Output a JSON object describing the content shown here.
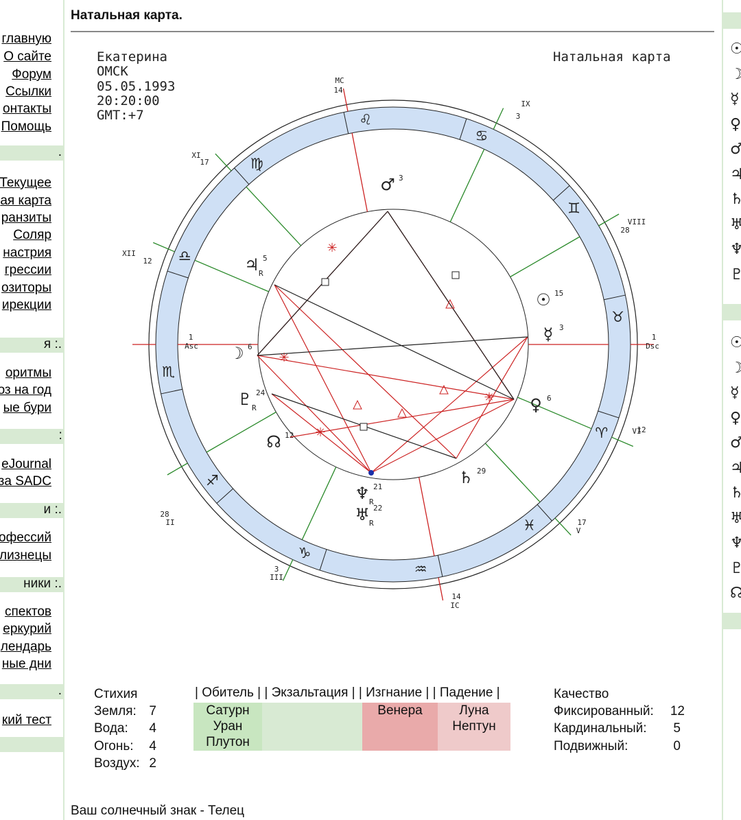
{
  "page_title": "Натальная карта.",
  "left_nav": {
    "items_top": [
      "главную",
      "О сайте",
      "Форум",
      "Ссылки",
      "онтакты",
      "Помощь"
    ],
    "band1": ".",
    "items_2": [
      "Текущее",
      "ая карта",
      "ранзиты",
      "Соляр",
      "настрия",
      "грессии",
      "озиторы",
      "ирекции"
    ],
    "band2": "я :.",
    "items_3": [
      "оритмы",
      "оз на год",
      "ые бури"
    ],
    "band3": ":.",
    "items_4": [
      "eJournal",
      "за SADC"
    ],
    "band4": "и :.",
    "items_5": [
      "офессий",
      "лизнецы"
    ],
    "band5": "ники :.",
    "items_6": [
      "спектов",
      "еркурий",
      "лендарь",
      "ные дни"
    ],
    "band6": ".",
    "items_7": [
      "кий тест"
    ]
  },
  "right_nav": {
    "glyphs_1": [
      "☉",
      "☽",
      "☿",
      "♀",
      "♂",
      "♃",
      "♄",
      "♅",
      "♆",
      "♇"
    ],
    "glyphs_2": [
      "☉",
      "☽",
      "☿",
      "♀",
      "♂",
      "♃",
      "♄",
      "♅",
      "♆",
      "♇",
      "☊"
    ]
  },
  "chart_header": {
    "name": "Екатерина",
    "city": "ОМСК",
    "date": "05.05.1993",
    "time": "20:20:00",
    "gmt": "GMT:+7",
    "chart_label": "Натальная карта"
  },
  "houses": [
    {
      "label": "1",
      "sub": "Asc"
    },
    {
      "label": "II",
      "deg": "28"
    },
    {
      "label": "III",
      "deg": "3"
    },
    {
      "label": "IC",
      "deg": "14"
    },
    {
      "label": "V",
      "deg": "17"
    },
    {
      "label": "VI",
      "deg": "12"
    },
    {
      "label": "1",
      "sub": "Dsc"
    },
    {
      "label": "VIII",
      "deg": "28"
    },
    {
      "label": "IX",
      "deg": "3"
    },
    {
      "label": "MC",
      "deg": "14"
    },
    {
      "label": "XI",
      "deg": "17"
    },
    {
      "label": "XII",
      "deg": "12"
    }
  ],
  "signs": [
    "♌",
    "♋",
    "♊",
    "♉",
    "♈",
    "♓",
    "♒",
    "♑",
    "♐",
    "♏",
    "♎",
    "♍"
  ],
  "planets": [
    {
      "name": "Mars",
      "glyph": "♂",
      "deg": "3"
    },
    {
      "name": "Jupiter",
      "glyph": "♃",
      "deg": "5",
      "retro": "R"
    },
    {
      "name": "Sun",
      "glyph": "☉",
      "deg": "15"
    },
    {
      "name": "Mercury",
      "glyph": "☿",
      "deg": "3"
    },
    {
      "name": "Moon",
      "glyph": "☽",
      "deg": "6"
    },
    {
      "name": "Venus",
      "glyph": "♀",
      "deg": "6"
    },
    {
      "name": "Pluto",
      "glyph": "♇",
      "deg": "24",
      "retro": "R"
    },
    {
      "name": "Node",
      "glyph": "☊",
      "deg": "12"
    },
    {
      "name": "Saturn",
      "glyph": "♄",
      "deg": "29"
    },
    {
      "name": "Neptune",
      "glyph": "♆",
      "deg": "21",
      "retro": "R"
    },
    {
      "name": "Uranus",
      "glyph": "♅",
      "deg": "22",
      "retro": "R"
    }
  ],
  "elements": {
    "title": "Стихия",
    "rows": [
      {
        "label": "Земля:",
        "value": "7"
      },
      {
        "label": "Вода:",
        "value": "4"
      },
      {
        "label": "Огонь:",
        "value": "4"
      },
      {
        "label": "Воздух:",
        "value": "2"
      }
    ]
  },
  "dignities": {
    "header": "| Обитель | | Экзальтация | | Изгнание | | Падение |",
    "obitel": [
      "Сатурн",
      "Уран",
      "Плутон"
    ],
    "exaltation": [],
    "exile": [
      "Венера"
    ],
    "fall": [
      "Луна",
      "Нептун"
    ],
    "colors": {
      "obitel": "#c8e6c0",
      "exaltation": "#d8ead3",
      "exile": "#e9aaaa",
      "fall": "#efcaca"
    }
  },
  "quality": {
    "title": "Качество",
    "rows": [
      {
        "label": "Фиксированный:",
        "value": "12"
      },
      {
        "label": "Кардинальный:",
        "value": "5"
      },
      {
        "label": "Подвижный:",
        "value": "0"
      }
    ]
  },
  "sun_sign_text": "Ваш солнечный знак - Телец",
  "colors": {
    "ring": "#cfe0f5",
    "red": "#cc2222",
    "green": "#2b8a2b",
    "sidebar_band": "#d8ead3"
  }
}
